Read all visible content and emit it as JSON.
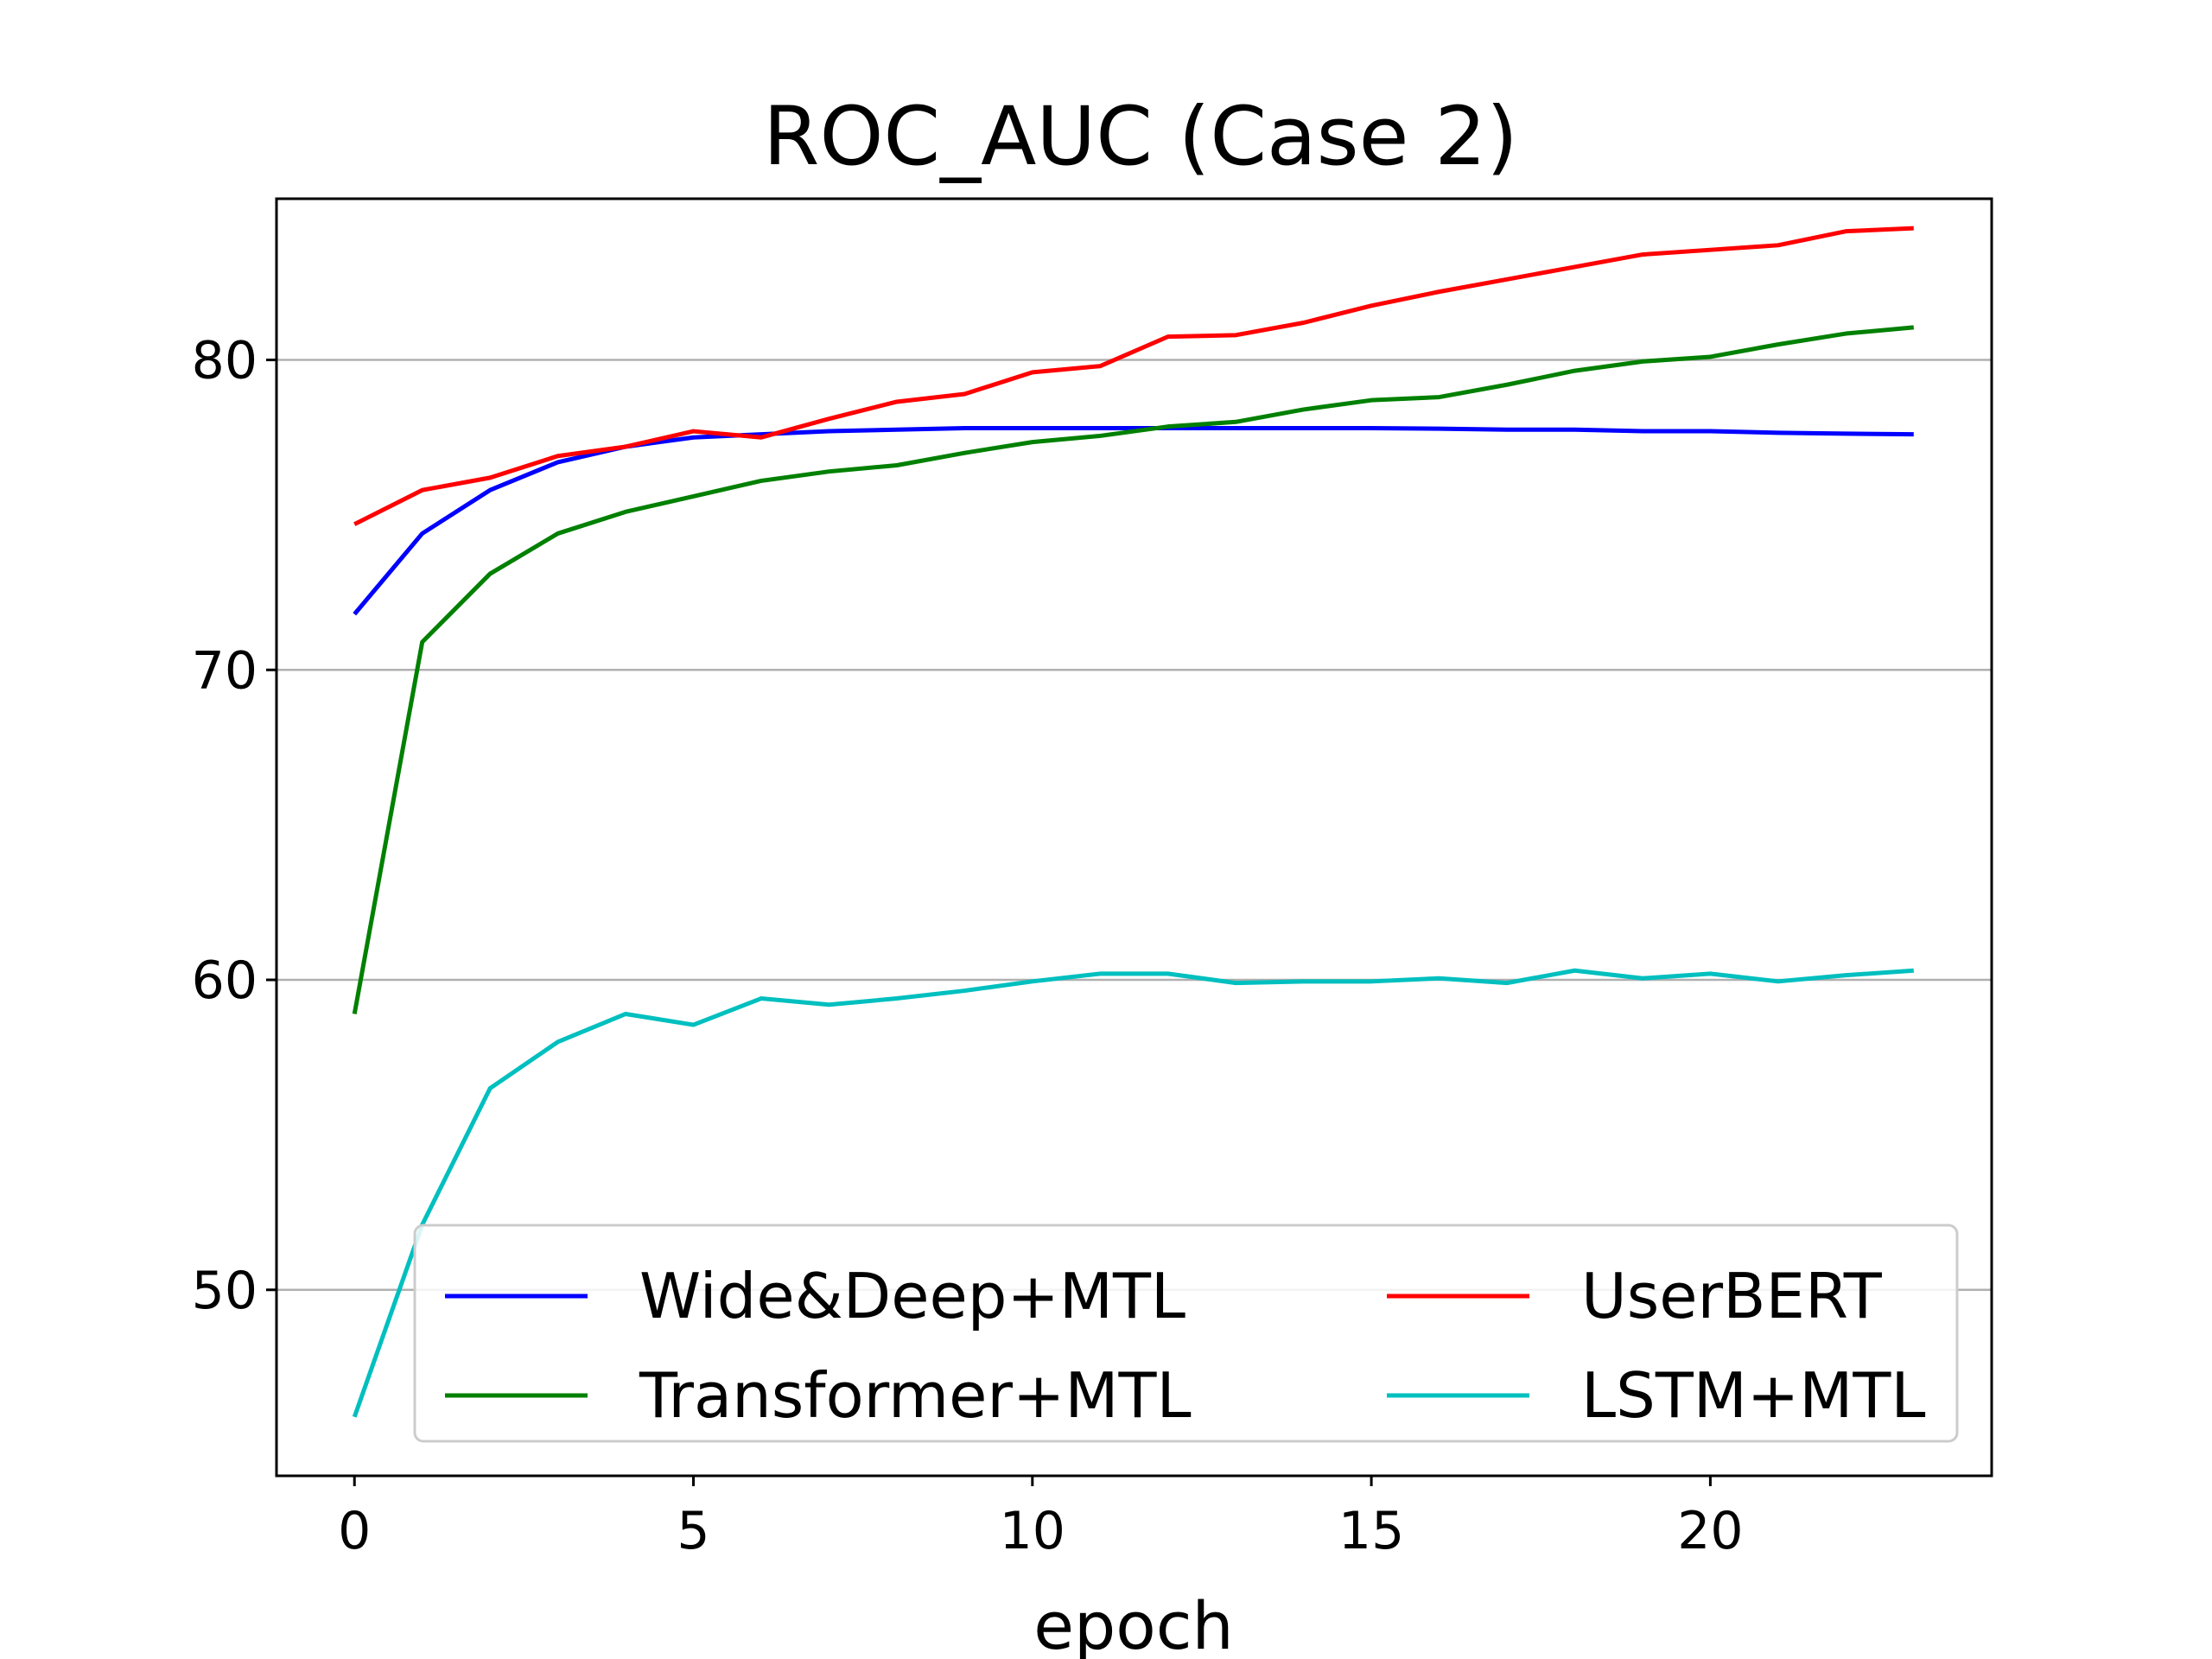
{
  "chart_data": {
    "type": "line",
    "title": "ROC_AUC (Case 2)",
    "xlabel": "epoch",
    "ylabel": "",
    "xlim": [
      -1.15,
      24.15
    ],
    "ylim": [
      44.0,
      85.2
    ],
    "xticks": [
      0,
      5,
      10,
      15,
      20
    ],
    "yticks": [
      50,
      60,
      70,
      80
    ],
    "grid": "horizontal",
    "legend_position": "lower-center",
    "legend_columns": 2,
    "x": [
      0,
      1,
      2,
      3,
      4,
      5,
      6,
      7,
      8,
      9,
      10,
      11,
      12,
      13,
      14,
      15,
      16,
      17,
      18,
      19,
      20,
      21,
      22,
      23
    ],
    "series": [
      {
        "name": "Wide&Deep+MTL",
        "color": "#0000ff",
        "values": [
          71.8,
          74.4,
          75.8,
          76.7,
          77.2,
          77.5,
          77.6,
          77.7,
          77.75,
          77.8,
          77.8,
          77.8,
          77.8,
          77.8,
          77.8,
          77.8,
          77.78,
          77.75,
          77.75,
          77.7,
          77.7,
          77.65,
          77.62,
          77.6
        ]
      },
      {
        "name": "Transformer+MTL",
        "color": "#008000",
        "values": [
          58.9,
          70.9,
          73.1,
          74.4,
          75.1,
          75.6,
          76.1,
          76.4,
          76.6,
          77.0,
          77.35,
          77.55,
          77.85,
          78.0,
          78.4,
          78.7,
          78.8,
          79.2,
          79.65,
          79.95,
          80.1,
          80.5,
          80.85,
          81.05
        ]
      },
      {
        "name": "UserBERT",
        "color": "#ff0000",
        "values": [
          74.7,
          75.8,
          76.2,
          76.9,
          77.2,
          77.7,
          77.5,
          78.1,
          78.65,
          78.9,
          79.6,
          79.8,
          80.75,
          80.8,
          81.2,
          81.75,
          82.2,
          82.6,
          83.0,
          83.4,
          83.55,
          83.7,
          84.15,
          84.25
        ]
      },
      {
        "name": "LSTM+MTL",
        "color": "#00bfbf",
        "values": [
          45.9,
          52.1,
          56.5,
          58.0,
          58.9,
          58.55,
          59.4,
          59.2,
          59.4,
          59.65,
          59.95,
          60.2,
          60.2,
          59.9,
          59.95,
          59.95,
          60.05,
          59.9,
          60.3,
          60.05,
          60.2,
          59.95,
          60.15,
          60.3
        ]
      }
    ],
    "legend": [
      {
        "name": "Wide&Deep+MTL",
        "series_index": 0
      },
      {
        "name": "UserBERT",
        "series_index": 2
      },
      {
        "name": "Transformer+MTL",
        "series_index": 1
      },
      {
        "name": "LSTM+MTL",
        "series_index": 3
      }
    ]
  }
}
